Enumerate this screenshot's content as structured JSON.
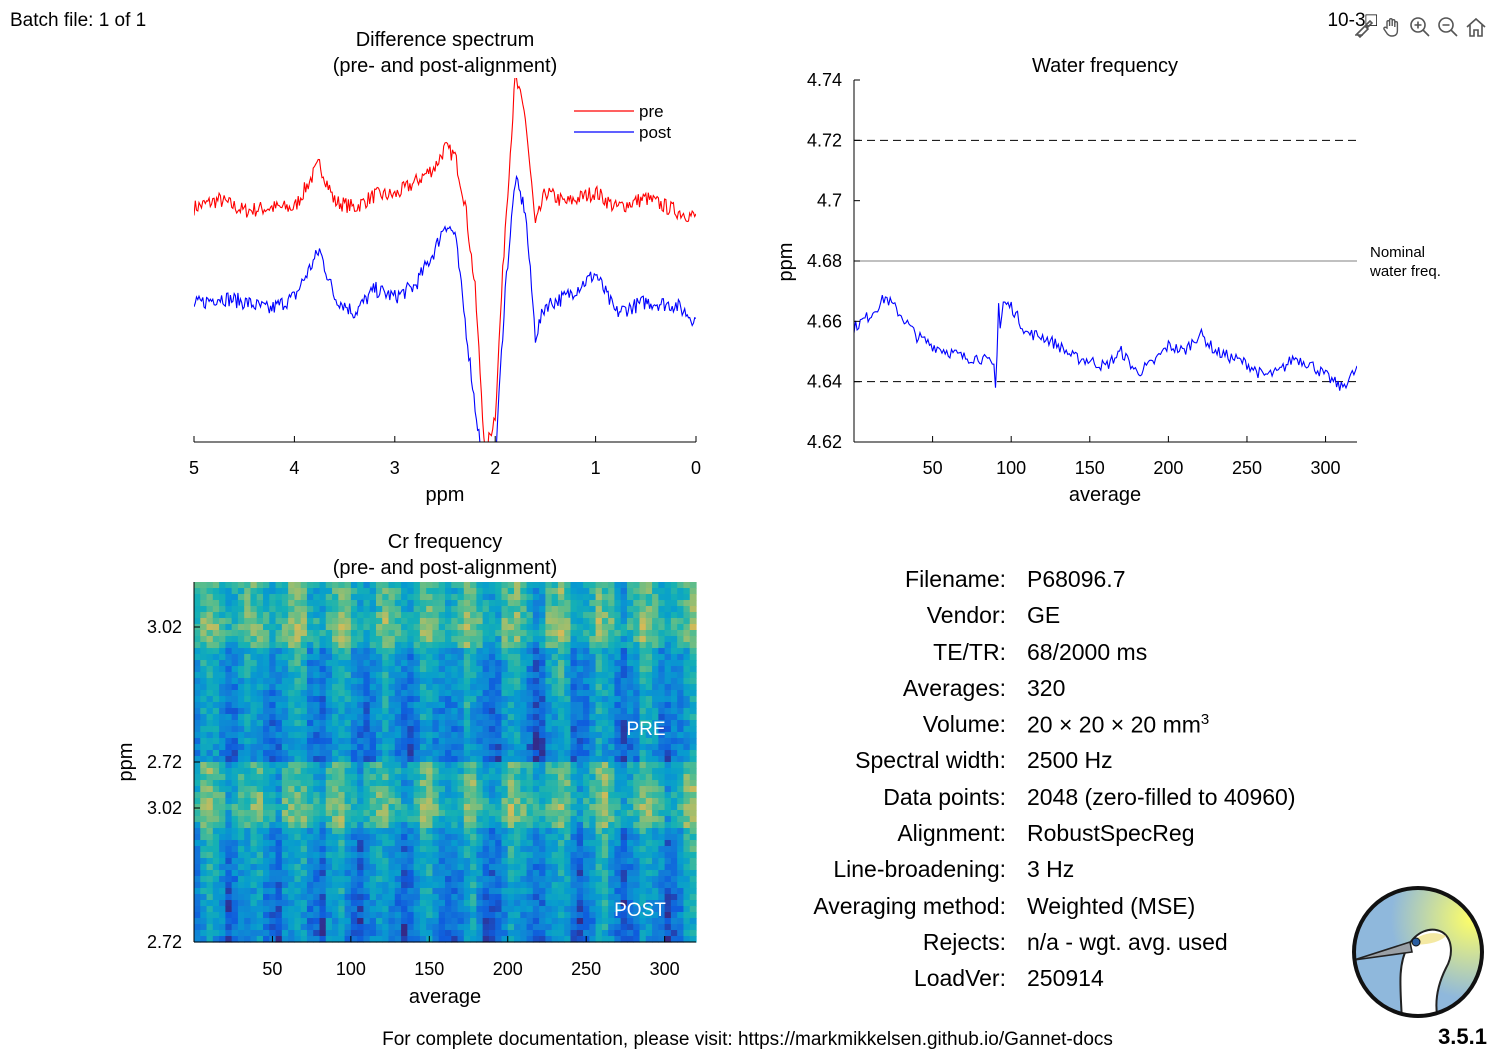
{
  "header": {
    "batch": "Batch file: 1 of 1",
    "date": "10-3□"
  },
  "toolbar": {
    "icons": [
      "brush-icon",
      "pan-icon",
      "zoom-in-icon",
      "zoom-out-icon",
      "home-icon"
    ]
  },
  "colors": {
    "pre": "#ff0000",
    "post": "#0000ff",
    "dashed": "#000000",
    "nominal": "#808080"
  },
  "chart_data": [
    {
      "type": "line",
      "title": "Difference spectrum\n(pre- and post-alignment)",
      "xlabel": "ppm",
      "ylabel": "",
      "xlim": [
        5,
        0
      ],
      "x_reversed": true,
      "xticks": [
        "5",
        "4",
        "3",
        "2",
        "1",
        "0"
      ],
      "legend": "top-right",
      "series": [
        {
          "name": "pre",
          "x": [
            5.0,
            4.75,
            4.5,
            4.25,
            4.0,
            3.75,
            3.6,
            3.4,
            3.2,
            3.0,
            2.8,
            2.6,
            2.5,
            2.4,
            2.3,
            2.2,
            2.1,
            2.0,
            1.9,
            1.8,
            1.7,
            1.6,
            1.5,
            1.3,
            1.0,
            0.8,
            0.5,
            0.2,
            0.0
          ],
          "values": [
            0.62,
            0.67,
            0.6,
            0.62,
            0.62,
            0.9,
            0.66,
            0.62,
            0.7,
            0.7,
            0.78,
            0.88,
            1.0,
            0.95,
            0.65,
            0.1,
            -0.95,
            -0.7,
            0.5,
            1.45,
            1.2,
            0.5,
            0.72,
            0.65,
            0.72,
            0.62,
            0.68,
            0.6,
            0.56
          ]
        },
        {
          "name": "post",
          "x": [
            5.0,
            4.75,
            4.5,
            4.25,
            4.0,
            3.75,
            3.6,
            3.4,
            3.2,
            3.0,
            2.8,
            2.6,
            2.5,
            2.4,
            2.3,
            2.2,
            2.1,
            2.0,
            1.9,
            1.8,
            1.7,
            1.6,
            1.5,
            1.3,
            1.0,
            0.8,
            0.5,
            0.2,
            0.0
          ],
          "values": [
            0.0,
            0.05,
            0.02,
            -0.03,
            0.05,
            0.35,
            0.05,
            -0.05,
            0.1,
            0.05,
            0.12,
            0.35,
            0.52,
            0.45,
            -0.1,
            -0.65,
            -1.1,
            -1.0,
            0.1,
            0.8,
            0.6,
            -0.2,
            0.0,
            0.05,
            0.2,
            -0.05,
            0.02,
            0.0,
            -0.1
          ]
        }
      ]
    },
    {
      "type": "line",
      "title": "Water frequency",
      "xlabel": "average",
      "ylabel": "ppm",
      "xlim": [
        0,
        320
      ],
      "ylim": [
        4.62,
        4.74
      ],
      "xticks": [
        50,
        100,
        150,
        200,
        250,
        300
      ],
      "yticks": [
        "4.62",
        "4.64",
        "4.66",
        "4.68",
        "4.7",
        "4.72",
        "4.74"
      ],
      "reference_lines": [
        {
          "y": 4.72,
          "style": "dashed"
        },
        {
          "y": 4.64,
          "style": "dashed"
        },
        {
          "y": 4.68,
          "style": "solid",
          "label": "Nominal\nwater freq."
        }
      ],
      "series": [
        {
          "x": [
            0,
            10,
            20,
            30,
            40,
            50,
            60,
            70,
            80,
            90,
            95,
            100,
            110,
            120,
            130,
            140,
            150,
            160,
            170,
            180,
            190,
            200,
            210,
            220,
            230,
            240,
            250,
            260,
            270,
            280,
            290,
            300,
            310,
            320
          ],
          "values": [
            4.658,
            4.662,
            4.668,
            4.662,
            4.655,
            4.652,
            4.65,
            4.648,
            4.648,
            4.645,
            4.666,
            4.665,
            4.656,
            4.655,
            4.652,
            4.648,
            4.647,
            4.645,
            4.65,
            4.643,
            4.646,
            4.652,
            4.65,
            4.656,
            4.65,
            4.648,
            4.646,
            4.642,
            4.643,
            4.648,
            4.646,
            4.642,
            4.638,
            4.644
          ]
        }
      ]
    },
    {
      "type": "heatmap",
      "title": "Cr frequency\n(pre- and post-alignment)",
      "xlabel": "average",
      "ylabel": "ppm",
      "xlim": [
        0,
        320
      ],
      "xticks": [
        50,
        100,
        150,
        200,
        250,
        300
      ],
      "panels": [
        {
          "label": "PRE",
          "yticks": [
            "3.02",
            "2.72"
          ]
        },
        {
          "label": "POST",
          "yticks": [
            "3.02",
            "2.72"
          ]
        }
      ],
      "colormap": "parula"
    }
  ],
  "info": [
    {
      "label": "Filename:",
      "value": "P68096.7"
    },
    {
      "label": "Vendor:",
      "value": "GE"
    },
    {
      "label": "TE/TR:",
      "value": "68/2000 ms"
    },
    {
      "label": "Averages:",
      "value": "320"
    },
    {
      "label": "Volume:",
      "value": "20 × 20 × 20 mm",
      "sup": "3"
    },
    {
      "label": "Spectral width:",
      "value": "2500 Hz"
    },
    {
      "label": "Data points:",
      "value": "2048 (zero-filled to 40960)"
    },
    {
      "label": "Alignment:",
      "value": "RobustSpecReg"
    },
    {
      "label": "Line-broadening:",
      "value": "3 Hz"
    },
    {
      "label": "Averaging method:",
      "value": "Weighted (MSE)"
    },
    {
      "label": "Rejects:",
      "value": "n/a - wgt. avg. used"
    },
    {
      "label": "LoadVer:",
      "value": "250914"
    }
  ],
  "footer": "For complete documentation, please visit: https://markmikkelsen.github.io/Gannet-docs",
  "version": "3.5.1"
}
